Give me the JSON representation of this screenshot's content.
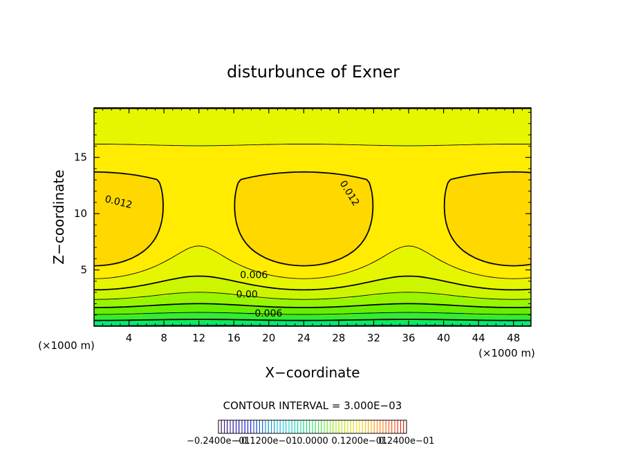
{
  "chart_data": {
    "type": "contour",
    "title": "disturbunce of Exner",
    "xlabel": "X−coordinate",
    "ylabel": "Z−coordinate",
    "x_unit_left": "(×1000 m)",
    "x_unit_right": "(×1000 m)",
    "xlim": [
      0,
      50
    ],
    "ylim": [
      0,
      19.4
    ],
    "xticks": [
      4,
      8,
      12,
      16,
      20,
      24,
      28,
      32,
      36,
      40,
      44,
      48
    ],
    "yticks": [
      5,
      10,
      15
    ],
    "contour_interval_text": "CONTOUR INTERVAL = 3.000E−03",
    "contour_labels": [
      {
        "text": "0.012",
        "x": 2.8,
        "z": 11.0,
        "angle": 14
      },
      {
        "text": "0.012",
        "x": 29.2,
        "z": 11.8,
        "angle": 58
      },
      {
        "text": "0.006",
        "x": 18.3,
        "z": 4.5,
        "angle": 0
      },
      {
        "text": "0.00",
        "x": 17.5,
        "z": 2.8,
        "angle": 0
      },
      {
        "text": "−0.006",
        "x": 19.5,
        "z": 1.1,
        "angle": 0
      }
    ],
    "field": {
      "description_levels": [
        -0.012,
        -0.009,
        -0.006,
        -0.003,
        0.0,
        0.003,
        0.006,
        0.009,
        0.012
      ],
      "max_value_approx": 0.0135,
      "min_value_approx": -0.009,
      "max_centers_x": [
        0,
        24,
        50
      ],
      "max_center_z": 8.3
    },
    "colorbar": {
      "tick_labels": [
        "−0.2400e−01",
        "−0.1200e−01",
        "0.0000",
        "0.1200e−01",
        "0.2400e−01"
      ],
      "range": [
        -0.024,
        0.024
      ]
    }
  }
}
